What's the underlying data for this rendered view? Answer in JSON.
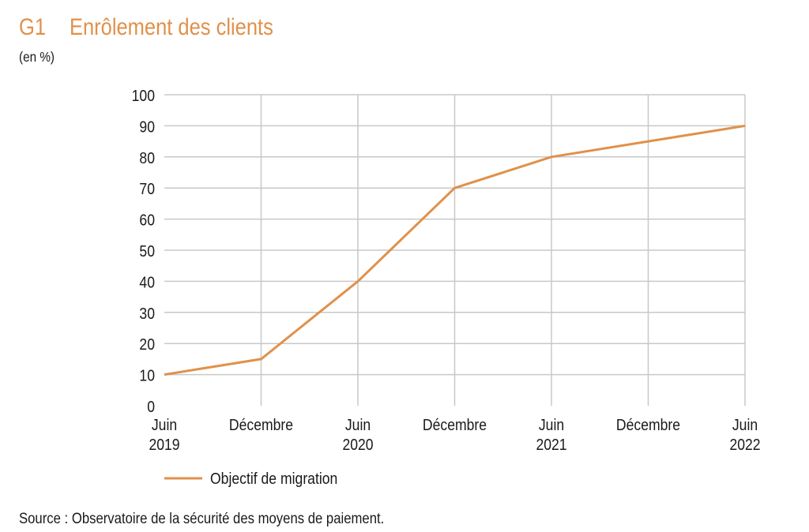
{
  "header": {
    "number": "G1",
    "title": "Enrôlement des clients",
    "unit": "(en %)"
  },
  "colors": {
    "accent": "#E0914A",
    "grid": "#c8c8c8",
    "text": "#1a1a1a"
  },
  "chart_data": {
    "type": "line",
    "title": "Enrôlement des clients",
    "ylabel": "(en %)",
    "xlabel": "",
    "categories": [
      [
        "Juin",
        "2019"
      ],
      [
        "Décembre",
        ""
      ],
      [
        "Juin",
        "2020"
      ],
      [
        "Décembre",
        ""
      ],
      [
        "Juin",
        "2021"
      ],
      [
        "Décembre",
        ""
      ],
      [
        "Juin",
        "2022"
      ]
    ],
    "series": [
      {
        "name": "Objectif de migration",
        "values": [
          10,
          15,
          40,
          70,
          80,
          85,
          90
        ]
      }
    ],
    "ylim": [
      0,
      100
    ],
    "yticks": [
      0,
      10,
      20,
      30,
      40,
      50,
      60,
      70,
      80,
      90,
      100
    ],
    "grid": true,
    "legend": "bottom-left"
  },
  "footer": {
    "source": "Source : Observatoire de la sécurité des moyens de paiement."
  }
}
